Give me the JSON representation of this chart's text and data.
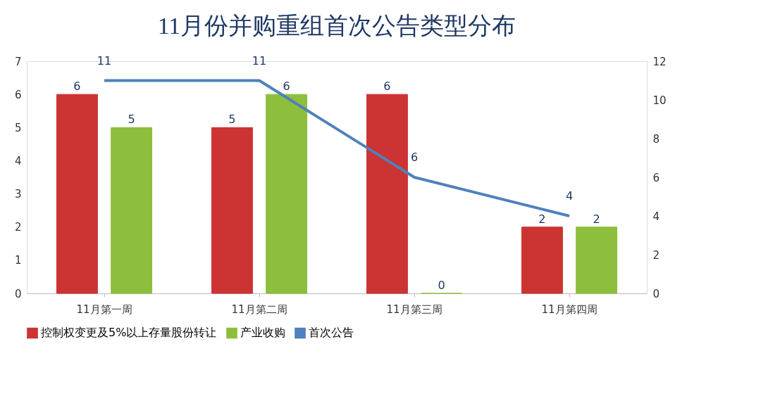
{
  "chart_data": {
    "type": "bar",
    "title": "11月份并购重组首次公告类型分布",
    "categories": [
      "11月第一周",
      "11月第二周",
      "11月第三周",
      "11月第四周"
    ],
    "series": [
      {
        "name": "控制权变更及5%以上存量股份转让",
        "color": "#cc3333",
        "values": [
          6,
          5,
          6,
          2
        ]
      },
      {
        "name": "产业收购",
        "color": "#8dbf3c",
        "values": [
          5,
          6,
          0,
          2
        ]
      },
      {
        "name": "首次公告",
        "color": "#4f81bd",
        "type": "line",
        "axis": "y2",
        "values": [
          11,
          11,
          6,
          4
        ]
      }
    ],
    "ylim": [
      0,
      7
    ],
    "yticks": [
      0,
      1,
      2,
      3,
      4,
      5,
      6,
      7
    ],
    "y2lim": [
      0,
      12
    ],
    "y2ticks": [
      0,
      2,
      4,
      6,
      8,
      10,
      12
    ],
    "data_labels": true,
    "legend": "bottom",
    "grid": false
  }
}
